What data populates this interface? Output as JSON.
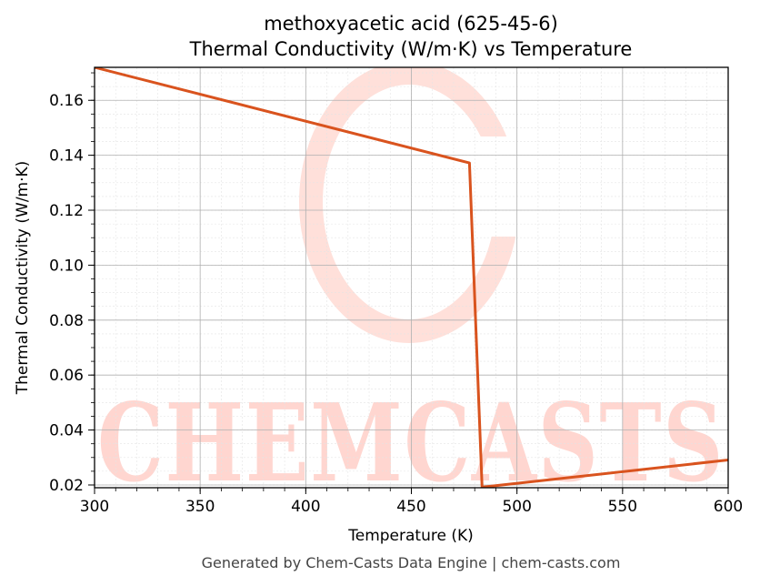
{
  "chart_data": {
    "type": "line",
    "title": "methoxyacetic acid (625-45-6)",
    "subtitle": "Thermal Conductivity (W/m·K) vs Temperature",
    "xlabel": "Temperature (K)",
    "ylabel": "Thermal Conductivity (W/m·K)",
    "xlim": [
      300,
      600
    ],
    "ylim": [
      0.019,
      0.172
    ],
    "x_ticks": [
      "300",
      "350",
      "400",
      "450",
      "500",
      "550",
      "600"
    ],
    "y_ticks": [
      "0.02",
      "0.04",
      "0.06",
      "0.08",
      "0.10",
      "0.12",
      "0.14",
      "0.16"
    ],
    "grid": true,
    "series": [
      {
        "color": "#d9531e",
        "x": [
          300,
          477.5,
          483.5,
          600
        ],
        "y": [
          0.172,
          0.1372,
          0.0192,
          0.0291
        ]
      }
    ]
  },
  "watermark": {
    "text": "CHEMCASTS",
    "color": "#ffd6d0"
  },
  "footer": "Generated by Chem-Casts Data Engine | chem-casts.com"
}
